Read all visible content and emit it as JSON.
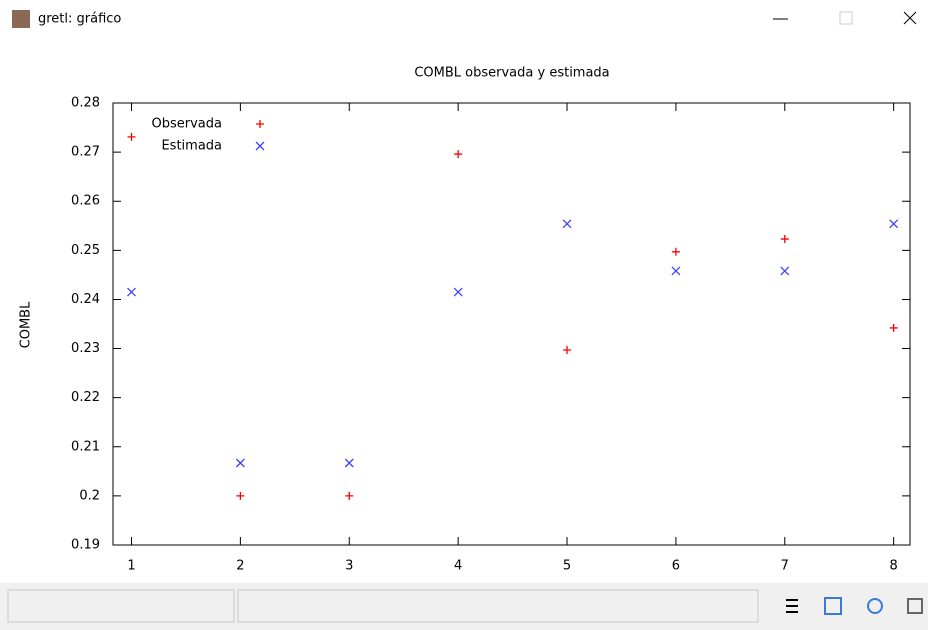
{
  "window": {
    "title": "gretl: gráfico"
  },
  "chart_data": {
    "type": "scatter",
    "title": "COMBL observada y estimada",
    "y_label": "COMBL",
    "x": [
      1,
      2,
      3,
      4,
      5,
      6,
      7,
      8
    ],
    "series": [
      {
        "name": "Observada",
        "color": "#ff0000",
        "marker": "+",
        "values": [
          0.2731,
          0.2,
          0.2,
          0.2696,
          0.2297,
          0.2497,
          0.2523,
          0.2342
        ]
      },
      {
        "name": "Estimada",
        "color": "#4040ff",
        "marker": "x",
        "values": [
          0.2415,
          0.2067,
          0.2067,
          0.2415,
          0.2554,
          0.2458,
          0.2458,
          0.2554
        ]
      }
    ],
    "xlim": [
      0.83,
      8.15
    ],
    "xticks": [
      1,
      2,
      3,
      4,
      5,
      6,
      7,
      8
    ],
    "ylim": [
      0.19,
      0.28
    ],
    "yticks": [
      0.19,
      0.2,
      0.21,
      0.22,
      0.23,
      0.24,
      0.25,
      0.26,
      0.27,
      0.28
    ],
    "legend": "top-left",
    "grid": false
  }
}
